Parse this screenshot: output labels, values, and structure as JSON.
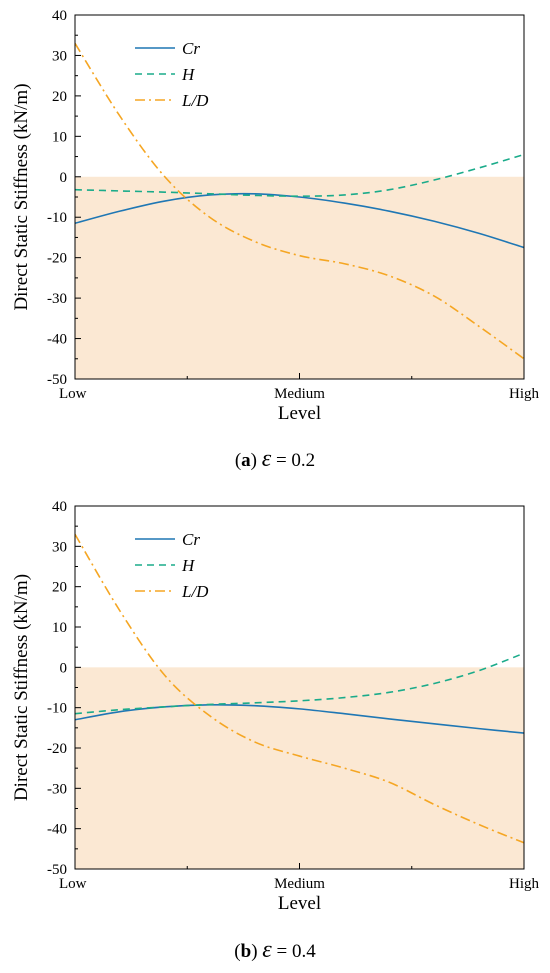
{
  "chart_data": [
    {
      "type": "line",
      "panel_label": "a",
      "caption_symbol": "ε",
      "caption_value": "= 0.2",
      "xlabel": "Level",
      "ylabel": "Direct Static Stiffness (kN/m)",
      "x_tick_labels": [
        "Low",
        "Medium",
        "High"
      ],
      "xlim": [
        0,
        1
      ],
      "ylim": [
        -50,
        40
      ],
      "y_ticks": [
        -50,
        -40,
        -30,
        -20,
        -10,
        0,
        10,
        20,
        30,
        40
      ],
      "shaded_region": {
        "y_from": -50,
        "y_to": 0,
        "color": "#fbe8d3"
      },
      "legend_position": "top-left",
      "series": [
        {
          "name": "Cr",
          "color": "#1f77b4",
          "dash": "solid",
          "x": [
            0,
            0.1,
            0.2,
            0.3,
            0.4,
            0.5,
            0.6,
            0.7,
            0.8,
            0.9,
            1.0
          ],
          "y": [
            -11.5,
            -8.5,
            -6,
            -4.5,
            -4.2,
            -5,
            -6.5,
            -8.5,
            -11,
            -14,
            -17.5
          ]
        },
        {
          "name": "H",
          "color": "#1aab8a",
          "dash": "dashed",
          "x": [
            0,
            0.1,
            0.2,
            0.3,
            0.4,
            0.5,
            0.6,
            0.7,
            0.8,
            0.9,
            1.0
          ],
          "y": [
            -3.2,
            -3.5,
            -3.8,
            -4.2,
            -4.6,
            -4.8,
            -4.5,
            -3.2,
            -0.8,
            2.2,
            5.5
          ]
        },
        {
          "name": "L/D",
          "color": "#f5a623",
          "dash": "dashdot",
          "x": [
            0,
            0.1,
            0.2,
            0.3,
            0.4,
            0.5,
            0.6,
            0.7,
            0.8,
            0.9,
            1.0
          ],
          "y": [
            33,
            15,
            0,
            -10,
            -16,
            -19.5,
            -21.5,
            -24.5,
            -29.5,
            -37,
            -45
          ]
        }
      ]
    },
    {
      "type": "line",
      "panel_label": "b",
      "caption_symbol": "ε",
      "caption_value": "= 0.4",
      "xlabel": "Level",
      "ylabel": "Direct Static Stiffness (kN/m)",
      "x_tick_labels": [
        "Low",
        "Medium",
        "High"
      ],
      "xlim": [
        0,
        1
      ],
      "ylim": [
        -50,
        40
      ],
      "y_ticks": [
        -50,
        -40,
        -30,
        -20,
        -10,
        0,
        10,
        20,
        30,
        40
      ],
      "shaded_region": {
        "y_from": -50,
        "y_to": 0,
        "color": "#fbe8d3"
      },
      "legend_position": "top-left",
      "series": [
        {
          "name": "Cr",
          "color": "#1f77b4",
          "dash": "solid",
          "x": [
            0,
            0.1,
            0.2,
            0.3,
            0.4,
            0.5,
            0.6,
            0.7,
            0.8,
            0.9,
            1.0
          ],
          "y": [
            -13,
            -11,
            -9.8,
            -9.3,
            -9.5,
            -10.3,
            -11.5,
            -12.8,
            -14,
            -15.2,
            -16.3
          ]
        },
        {
          "name": "H",
          "color": "#1aab8a",
          "dash": "dashed",
          "x": [
            0,
            0.1,
            0.2,
            0.3,
            0.4,
            0.5,
            0.6,
            0.7,
            0.8,
            0.9,
            1.0
          ],
          "y": [
            -11.5,
            -10.5,
            -9.8,
            -9.2,
            -8.8,
            -8.3,
            -7.5,
            -6.2,
            -4,
            -0.8,
            3.5
          ]
        },
        {
          "name": "L/D",
          "color": "#f5a623",
          "dash": "dashdot",
          "x": [
            0,
            0.1,
            0.2,
            0.3,
            0.4,
            0.5,
            0.6,
            0.7,
            0.8,
            0.9,
            1.0
          ],
          "y": [
            33,
            14,
            -2,
            -12,
            -18.5,
            -22,
            -25,
            -28.5,
            -34,
            -39,
            -43.5
          ]
        }
      ]
    }
  ]
}
